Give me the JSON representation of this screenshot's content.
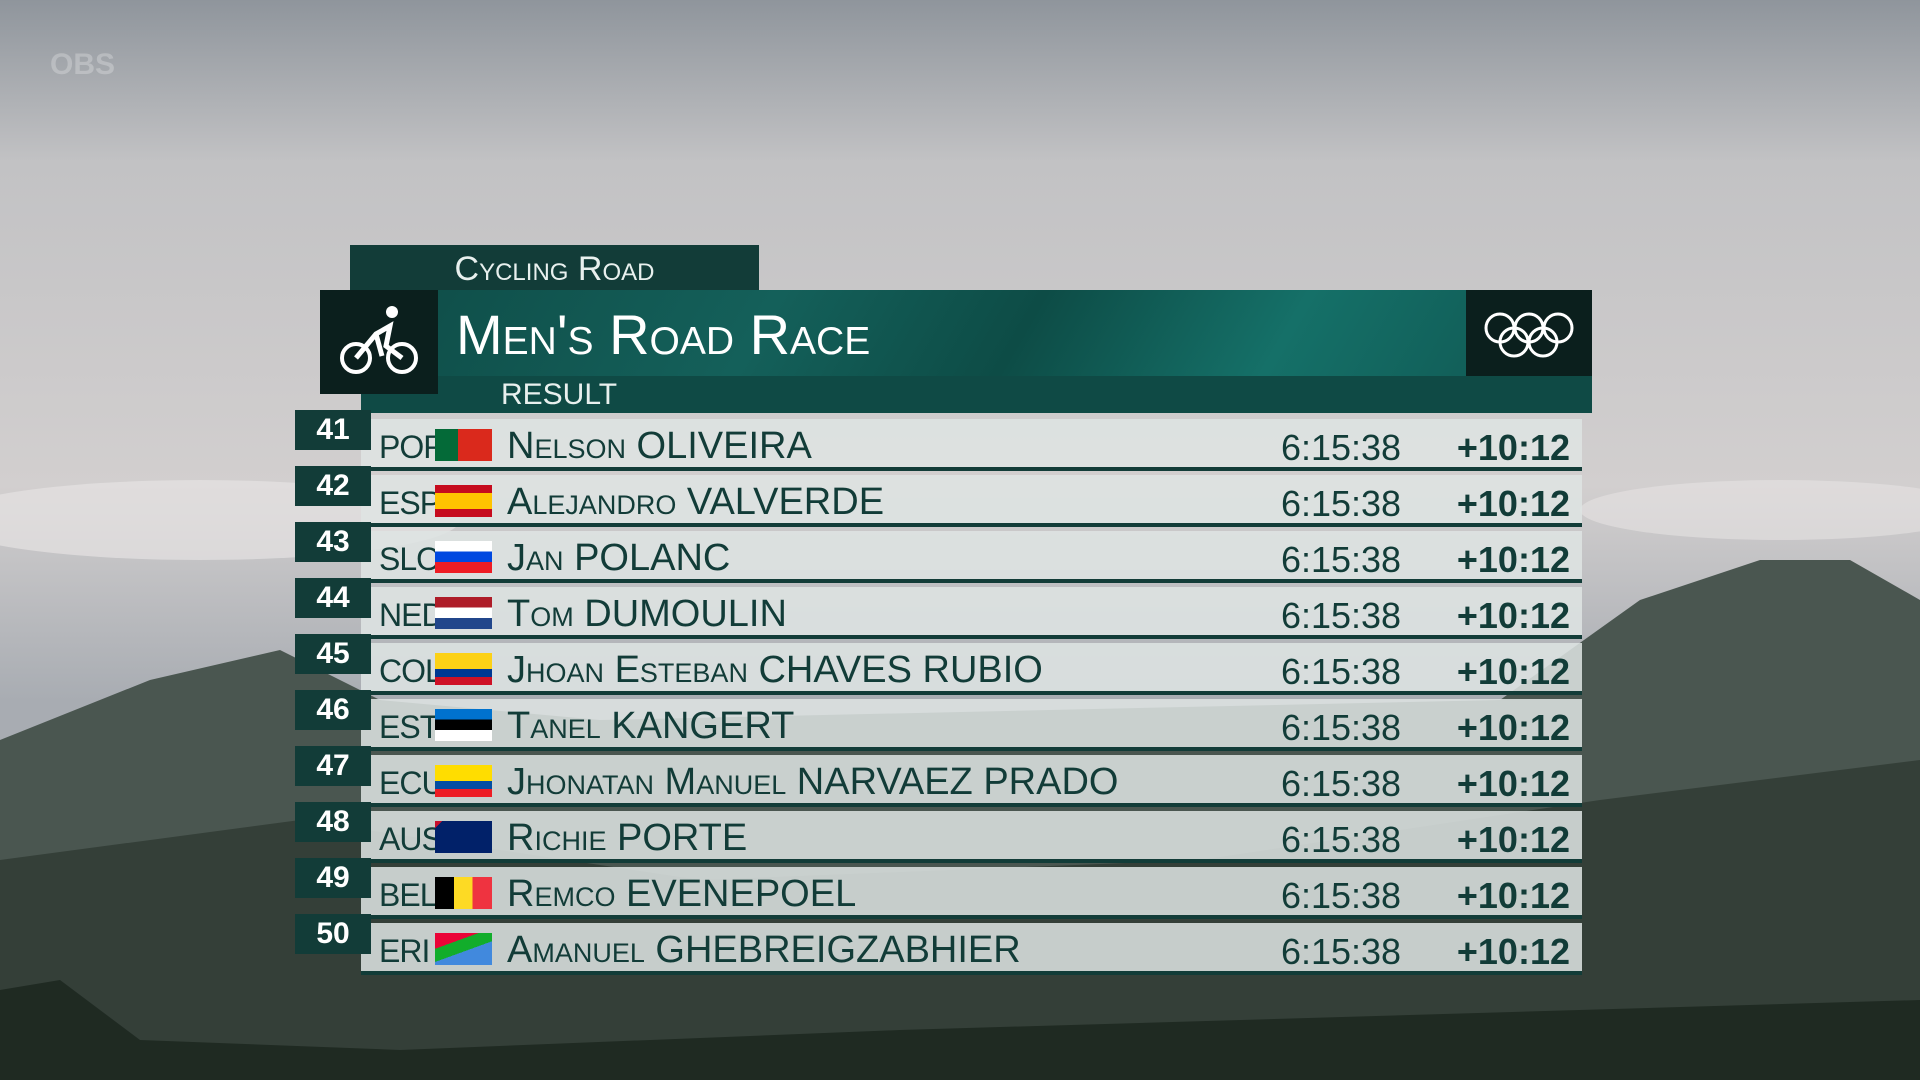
{
  "watermark": "OBS",
  "header": {
    "sport": "Cycling Road",
    "title": "Men's Road Race",
    "subtitle": "RESULT"
  },
  "rows": [
    {
      "rank": "41",
      "noc": "POR",
      "name": "Nelson OLIVEIRA",
      "time": "6:15:38",
      "gap": "+10:12"
    },
    {
      "rank": "42",
      "noc": "ESP",
      "name": "Alejandro VALVERDE",
      "time": "6:15:38",
      "gap": "+10:12"
    },
    {
      "rank": "43",
      "noc": "SLO",
      "name": "Jan POLANC",
      "time": "6:15:38",
      "gap": "+10:12"
    },
    {
      "rank": "44",
      "noc": "NED",
      "name": "Tom DUMOULIN",
      "time": "6:15:38",
      "gap": "+10:12"
    },
    {
      "rank": "45",
      "noc": "COL",
      "name": "Jhoan Esteban CHAVES RUBIO",
      "time": "6:15:38",
      "gap": "+10:12"
    },
    {
      "rank": "46",
      "noc": "EST",
      "name": "Tanel KANGERT",
      "time": "6:15:38",
      "gap": "+10:12"
    },
    {
      "rank": "47",
      "noc": "ECU",
      "name": "Jhonatan Manuel NARVAEZ PRADO",
      "time": "6:15:38",
      "gap": "+10:12"
    },
    {
      "rank": "48",
      "noc": "AUS",
      "name": "Richie PORTE",
      "time": "6:15:38",
      "gap": "+10:12"
    },
    {
      "rank": "49",
      "noc": "BEL",
      "name": "Remco EVENEPOEL",
      "time": "6:15:38",
      "gap": "+10:12"
    },
    {
      "rank": "50",
      "noc": "ERI",
      "name": "Amanuel GHEBREIGZABHIER",
      "time": "6:15:38",
      "gap": "+10:12"
    }
  ]
}
